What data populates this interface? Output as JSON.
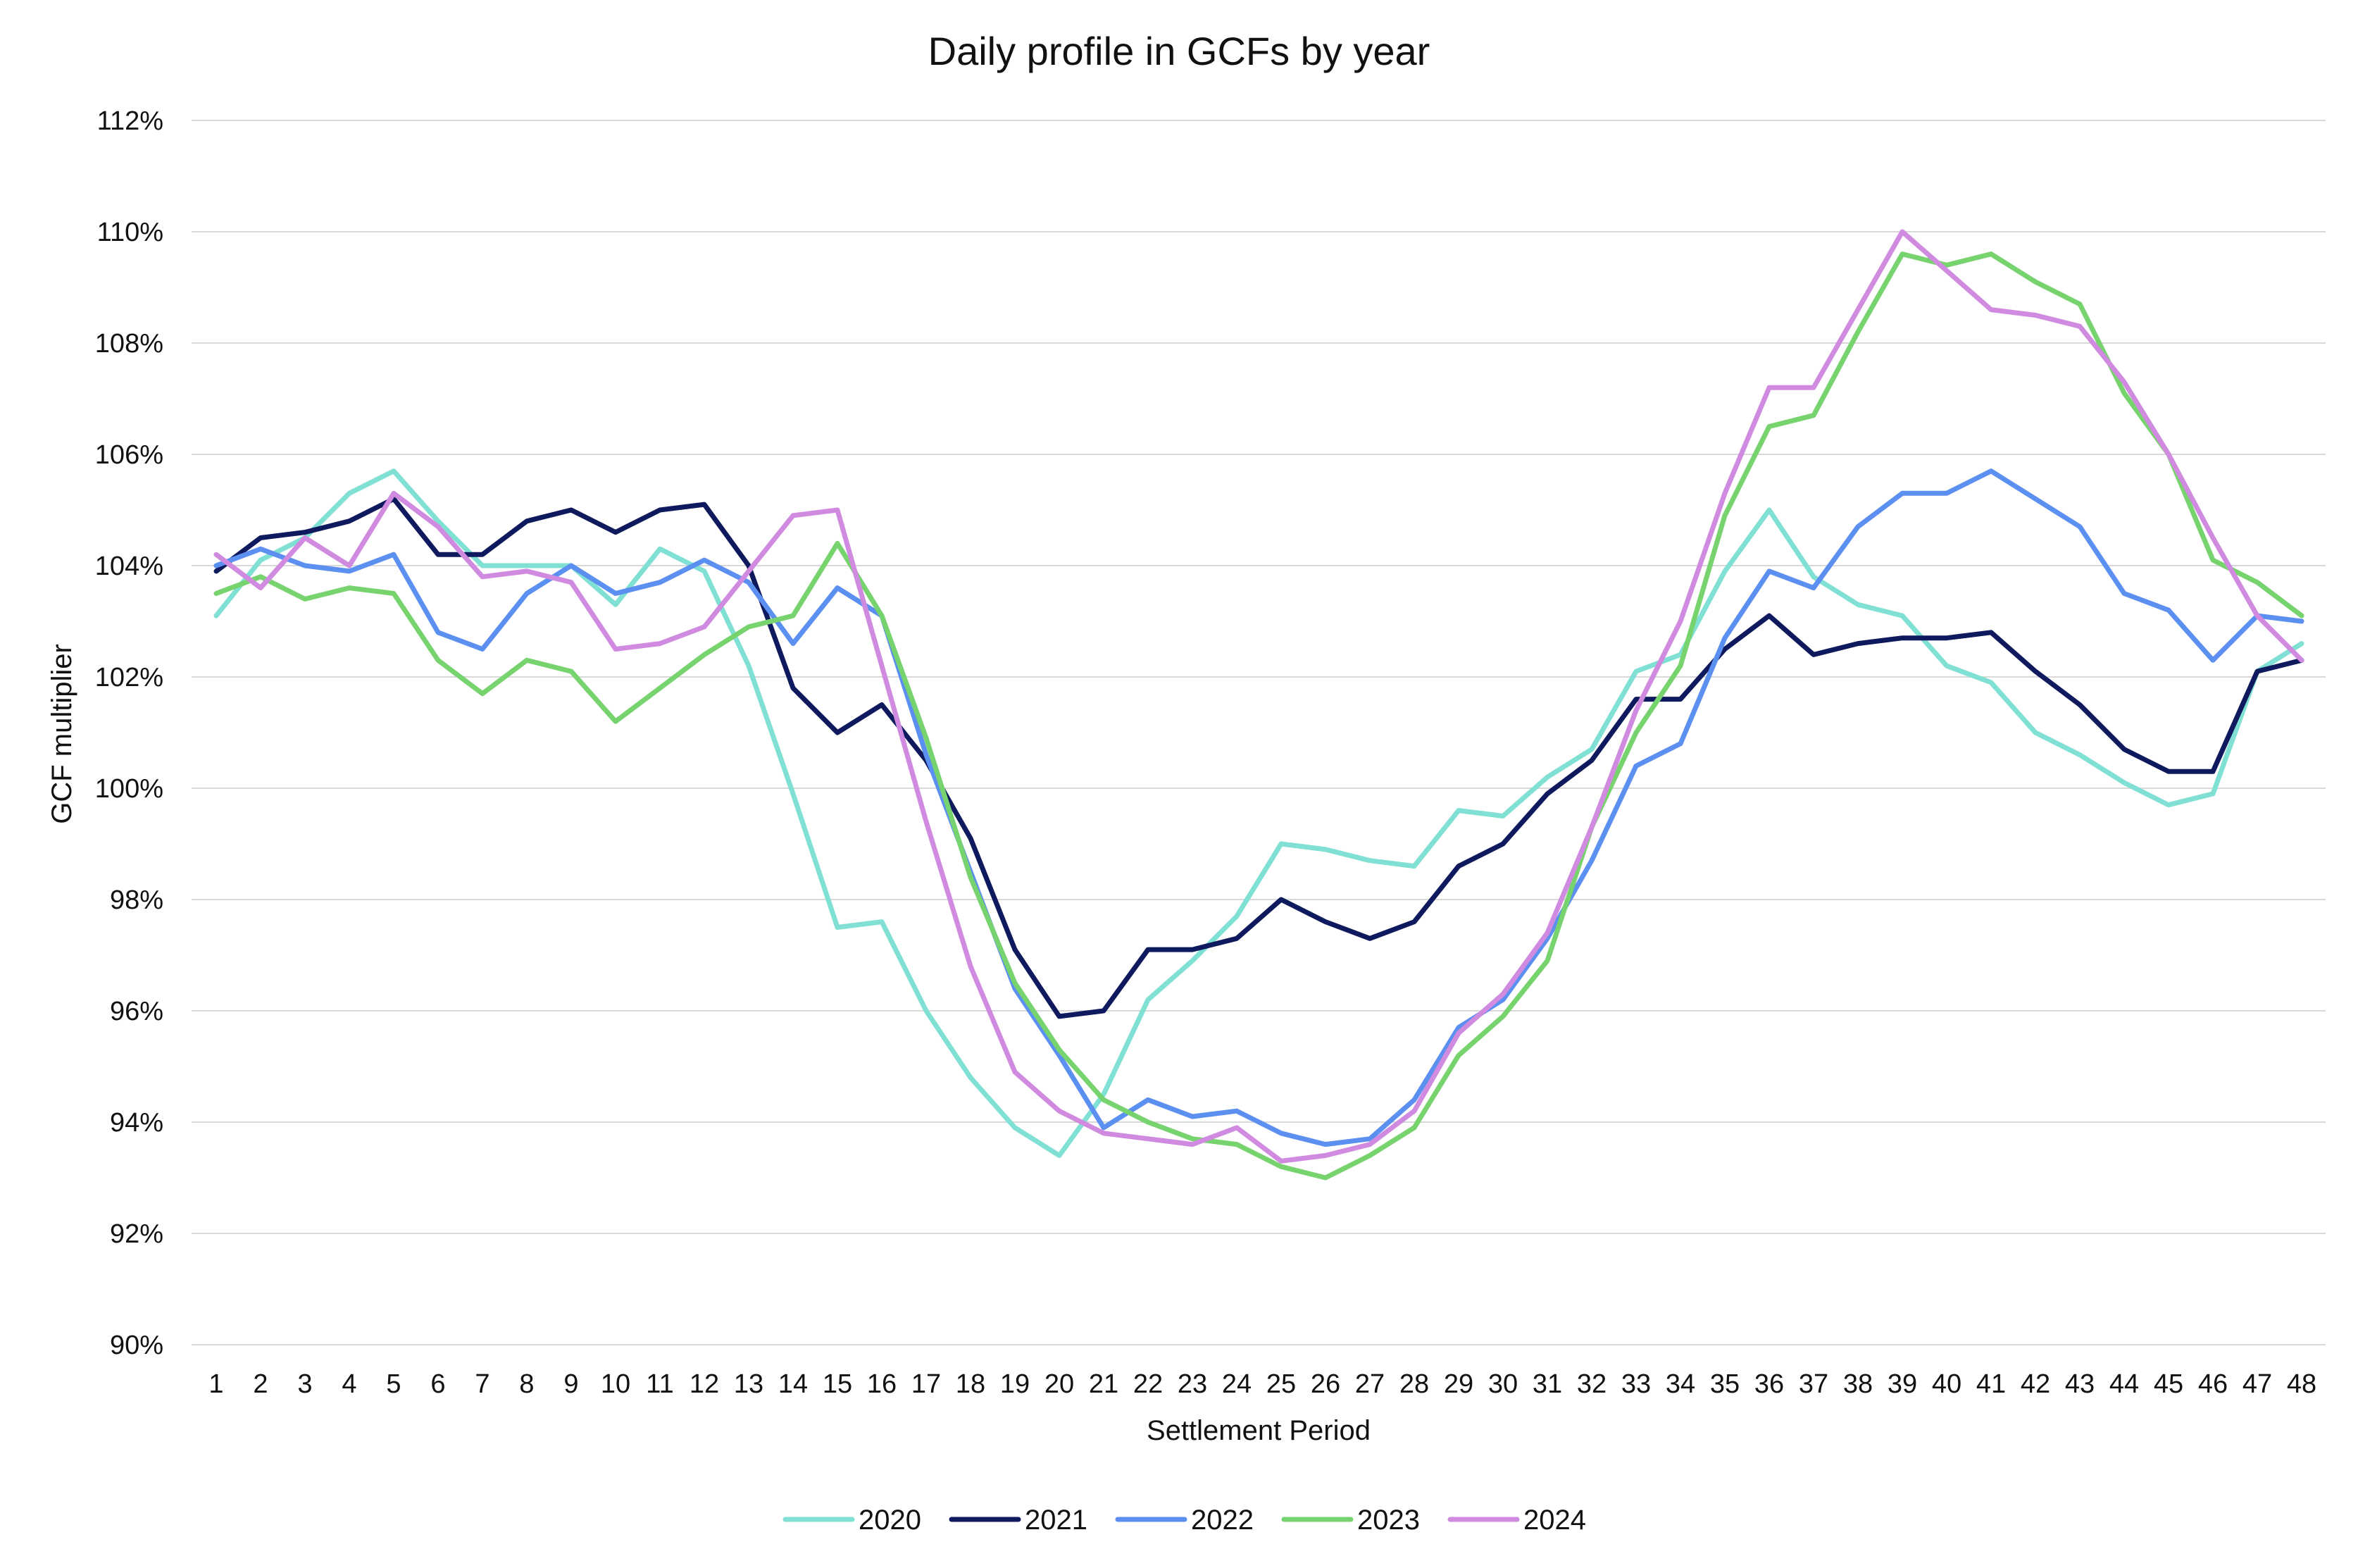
{
  "chart_data": {
    "type": "line",
    "title": "Daily profile in GCFs by year",
    "xlabel": "Settlement Period",
    "ylabel": "GCF multiplier",
    "ylim": [
      90,
      112
    ],
    "y_ticks": [
      "90%",
      "92%",
      "94%",
      "96%",
      "98%",
      "100%",
      "102%",
      "104%",
      "106%",
      "108%",
      "110%",
      "112%"
    ],
    "y_tick_values": [
      90,
      92,
      94,
      96,
      98,
      100,
      102,
      104,
      106,
      108,
      110,
      112
    ],
    "grid": true,
    "legend_position": "bottom",
    "x": [
      "1",
      "2",
      "3",
      "4",
      "5",
      "6",
      "7",
      "8",
      "9",
      "10",
      "11",
      "12",
      "13",
      "14",
      "15",
      "16",
      "17",
      "18",
      "19",
      "20",
      "21",
      "22",
      "23",
      "24",
      "25",
      "26",
      "27",
      "28",
      "29",
      "30",
      "31",
      "32",
      "33",
      "34",
      "35",
      "36",
      "37",
      "38",
      "39",
      "40",
      "41",
      "42",
      "43",
      "44",
      "45",
      "46",
      "47",
      "48"
    ],
    "series": [
      {
        "name": "2020",
        "color": "#7fe0d3",
        "values": [
          103.1,
          104.1,
          104.5,
          105.3,
          105.7,
          104.8,
          104.0,
          104.0,
          104.0,
          103.3,
          104.3,
          103.9,
          102.2,
          99.9,
          97.5,
          97.6,
          96.0,
          94.8,
          93.9,
          93.4,
          94.5,
          96.2,
          96.9,
          97.7,
          99.0,
          98.9,
          98.7,
          98.6,
          99.6,
          99.5,
          100.2,
          100.7,
          102.1,
          102.4,
          103.9,
          105.0,
          103.8,
          103.3,
          103.1,
          102.2,
          101.9,
          101.0,
          100.6,
          100.1,
          99.7,
          99.9,
          102.1,
          102.6
        ]
      },
      {
        "name": "2021",
        "color": "#0f1a5e",
        "values": [
          103.9,
          104.5,
          104.6,
          104.8,
          105.2,
          104.2,
          104.2,
          104.8,
          105.0,
          104.6,
          105.0,
          105.1,
          104.0,
          101.8,
          101.0,
          101.5,
          100.5,
          99.1,
          97.1,
          95.9,
          96.0,
          97.1,
          97.1,
          97.3,
          98.0,
          97.6,
          97.3,
          97.6,
          98.6,
          99.0,
          99.9,
          100.5,
          101.6,
          101.6,
          102.5,
          103.1,
          102.4,
          102.6,
          102.7,
          102.7,
          102.8,
          102.1,
          101.5,
          100.7,
          100.3,
          100.3,
          102.1,
          102.3
        ]
      },
      {
        "name": "2022",
        "color": "#5b8ff0",
        "values": [
          104.0,
          104.3,
          104.0,
          103.9,
          104.2,
          102.8,
          102.5,
          103.5,
          104.0,
          103.5,
          103.7,
          104.1,
          103.7,
          102.6,
          103.6,
          103.1,
          100.6,
          98.5,
          96.4,
          95.2,
          93.9,
          94.4,
          94.1,
          94.2,
          93.8,
          93.6,
          93.7,
          94.4,
          95.7,
          96.2,
          97.3,
          98.7,
          100.4,
          100.8,
          102.7,
          103.9,
          103.6,
          104.7,
          105.3,
          105.3,
          105.7,
          105.2,
          104.7,
          103.5,
          103.2,
          102.3,
          103.1,
          103.0
        ]
      },
      {
        "name": "2023",
        "color": "#77d36e",
        "values": [
          103.5,
          103.8,
          103.4,
          103.6,
          103.5,
          102.3,
          101.7,
          102.3,
          102.1,
          101.2,
          101.8,
          102.4,
          102.9,
          103.1,
          104.4,
          103.1,
          100.9,
          98.4,
          96.5,
          95.3,
          94.4,
          94.0,
          93.7,
          93.6,
          93.2,
          93.0,
          93.4,
          93.9,
          95.2,
          95.9,
          96.9,
          99.3,
          101.0,
          102.2,
          104.9,
          106.5,
          106.7,
          108.2,
          109.6,
          109.4,
          109.6,
          109.1,
          108.7,
          107.1,
          106.0,
          104.1,
          103.7,
          103.1
        ]
      },
      {
        "name": "2024",
        "color": "#d08be0",
        "values": [
          104.2,
          103.6,
          104.5,
          104.0,
          105.3,
          104.7,
          103.8,
          103.9,
          103.7,
          102.5,
          102.6,
          102.9,
          103.9,
          104.9,
          105.0,
          102.2,
          99.4,
          96.8,
          94.9,
          94.2,
          93.8,
          93.7,
          93.6,
          93.9,
          93.3,
          93.4,
          93.6,
          94.2,
          95.6,
          96.3,
          97.4,
          99.3,
          101.4,
          103.0,
          105.3,
          107.2,
          107.2,
          108.6,
          110.0,
          109.3,
          108.6,
          108.5,
          108.3,
          107.3,
          106.0,
          104.5,
          103.1,
          102.3
        ]
      }
    ]
  }
}
